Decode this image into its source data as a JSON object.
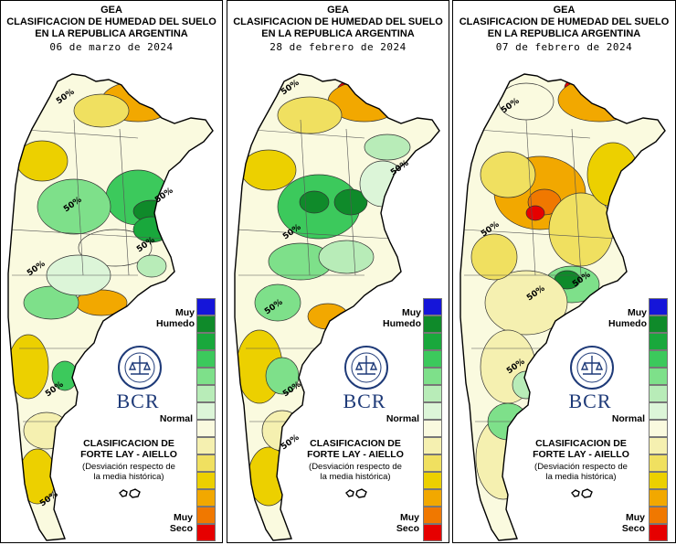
{
  "panels": [
    {
      "title_line1": "GEA",
      "title_line2": "CLASIFICACION DE HUMEDAD DEL SUELO",
      "title_line3": "EN LA REPUBLICA ARGENTINA",
      "date": "06 de marzo de 2024",
      "contour_labels": [
        "50%",
        "50%",
        "50%",
        "50%",
        "50%",
        "50%",
        "50%"
      ]
    },
    {
      "title_line1": "GEA",
      "title_line2": "CLASIFICACION DE HUMEDAD DEL SUELO",
      "title_line3": "EN LA REPUBLICA ARGENTINA",
      "date": "28 de febrero de 2024",
      "contour_labels": [
        "50%",
        "50%",
        "50%",
        "50%",
        "50%",
        "50%"
      ]
    },
    {
      "title_line1": "GEA",
      "title_line2": "CLASIFICACION DE HUMEDAD DEL SUELO",
      "title_line3": "EN LA REPUBLICA ARGENTINA",
      "date": "07 de febrero de 2024",
      "contour_labels": [
        "50%",
        "50%",
        "50%",
        "50%",
        "50%"
      ]
    }
  ],
  "legend": {
    "top_label_line1": "Muy",
    "top_label_line2": "Humedo",
    "middle_label": "Normal",
    "bottom_label_line1": "Muy",
    "bottom_label_line2": "Seco",
    "classification_line1": "CLASIFICACION DE",
    "classification_line2": "FORTE LAY - AIELLO",
    "classification_sub1": "(Desviación respecto de",
    "classification_sub2": "la media histórica)",
    "colors": [
      "#1515d9",
      "#0f8a2a",
      "#19a83c",
      "#3cc95c",
      "#7ee08a",
      "#b8ecb8",
      "#dcf5d8",
      "#fafadf",
      "#f5f0b0",
      "#f0e060",
      "#ecd000",
      "#f2a800",
      "#f07800",
      "#e60000"
    ]
  },
  "logo": {
    "brand_text": "BCR"
  },
  "colors": {
    "very_wet": "#1515d9",
    "normal": "#fafadf",
    "very_dry": "#e60000",
    "contour": "#333333"
  }
}
